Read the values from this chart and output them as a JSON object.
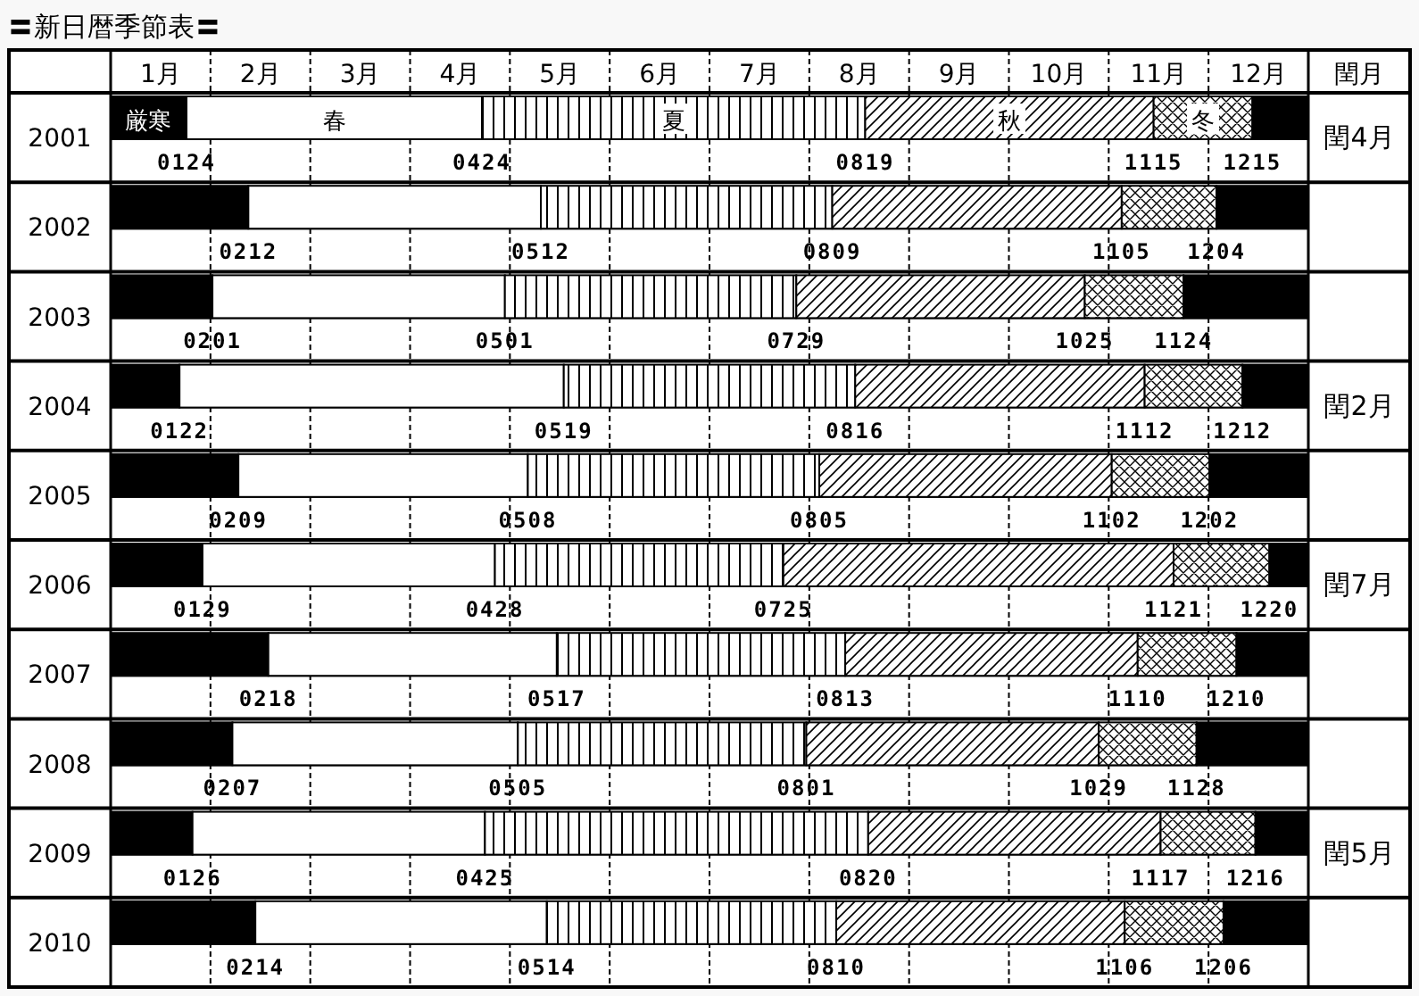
{
  "chart_data": {
    "type": "bar",
    "orientation": "horizontal",
    "title": "〓新日暦季節表〓",
    "y2label": "閏月",
    "grid": true,
    "categories": [
      "2001",
      "2002",
      "2003",
      "2004",
      "2005",
      "2006",
      "2007",
      "2008",
      "2009",
      "2010"
    ],
    "xlim": [
      0.5,
      12.5
    ],
    "xticks": [
      {
        "value": 1,
        "label": "1月"
      },
      {
        "value": 1.5,
        "label": null
      },
      {
        "value": 2,
        "label": "2月"
      },
      {
        "value": 2.5,
        "label": null
      },
      {
        "value": 3,
        "label": "3月"
      },
      {
        "value": 3.5,
        "label": null
      },
      {
        "value": 4,
        "label": "4月"
      },
      {
        "value": 4.5,
        "label": null
      },
      {
        "value": 5,
        "label": "5月"
      },
      {
        "value": 5.5,
        "label": null
      },
      {
        "value": 6,
        "label": "6月"
      },
      {
        "value": 6.5,
        "label": null
      },
      {
        "value": 7,
        "label": "7月"
      },
      {
        "value": 7.5,
        "label": null
      },
      {
        "value": 8,
        "label": "8月"
      },
      {
        "value": 8.5,
        "label": null
      },
      {
        "value": 9,
        "label": "9月"
      },
      {
        "value": 9.5,
        "label": null
      },
      {
        "value": 10,
        "label": "10月"
      },
      {
        "value": 10.5,
        "label": null
      },
      {
        "value": 11,
        "label": "11月"
      },
      {
        "value": 11.5,
        "label": null
      },
      {
        "value": 12,
        "label": "12月"
      }
    ],
    "series": [
      {
        "name": "厳寒",
        "color": "#000000",
        "base": [
          0.5,
          0.5,
          0.5,
          0.5,
          0.5,
          0.5,
          0.5,
          0.5,
          0.5,
          0.5
        ],
        "values": [
          0.76,
          1.38,
          1.02,
          0.69,
          1.28,
          0.92,
          1.58,
          1.22,
          0.82,
          1.45
        ]
      },
      {
        "name": "春",
        "color": "#ffffff",
        "base": [
          1.26,
          1.88,
          1.52,
          1.19,
          1.78,
          1.42,
          2.08,
          1.72,
          1.32,
          1.95
        ],
        "values": [
          2.96,
          2.93,
          2.93,
          3.85,
          2.9,
          2.93,
          2.89,
          2.86,
          2.93,
          2.92
        ]
      },
      {
        "name": "夏",
        "color": "#000000",
        "base": [
          4.22,
          4.81,
          4.45,
          5.04,
          4.68,
          4.35,
          4.97,
          4.58,
          4.25,
          4.87
        ],
        "values": [
          3.84,
          2.92,
          2.92,
          2.92,
          2.92,
          2.89,
          2.89,
          2.89,
          3.84,
          2.9
        ]
      },
      {
        "name": "秋",
        "color": "#000000",
        "base": [
          8.06,
          7.73,
          7.37,
          7.96,
          7.6,
          7.24,
          7.86,
          7.47,
          8.09,
          7.77
        ],
        "values": [
          2.89,
          2.9,
          2.89,
          2.9,
          2.93,
          3.91,
          2.93,
          2.93,
          2.93,
          2.89
        ]
      },
      {
        "name": "冬",
        "color": "#000000",
        "base": [
          10.95,
          10.63,
          10.26,
          10.86,
          10.53,
          11.15,
          10.79,
          10.4,
          11.02,
          10.66
        ],
        "values": [
          0.99,
          0.95,
          0.99,
          0.98,
          0.98,
          0.96,
          0.99,
          0.98,
          0.95,
          0.99
        ]
      },
      {
        "color": "#000000",
        "base": [
          11.94,
          11.58,
          11.25,
          11.84,
          11.51,
          12.11,
          11.78,
          11.38,
          11.97,
          11.65
        ],
        "values": [
          0.56,
          0.92,
          1.25,
          0.66,
          0.99,
          0.39,
          0.72,
          1.12,
          0.53,
          0.85
        ]
      }
    ],
    "annotations": [
      {
        "text": "0124",
        "x": 1.26,
        "y": "2001"
      },
      {
        "text": "0424",
        "x": 4.22,
        "y": "2001"
      },
      {
        "text": "0819",
        "x": 8.06,
        "y": "2001"
      },
      {
        "text": "1115",
        "x": 10.95,
        "y": "2001"
      },
      {
        "text": "1215",
        "x": 11.94,
        "y": "2001"
      },
      {
        "text": "0212",
        "x": 1.88,
        "y": "2002"
      },
      {
        "text": "0512",
        "x": 4.81,
        "y": "2002"
      },
      {
        "text": "0809",
        "x": 7.73,
        "y": "2002"
      },
      {
        "text": "1105",
        "x": 10.63,
        "y": "2002"
      },
      {
        "text": "1204",
        "x": 11.58,
        "y": "2002"
      },
      {
        "text": "0201",
        "x": 1.52,
        "y": "2003"
      },
      {
        "text": "0501",
        "x": 4.45,
        "y": "2003"
      },
      {
        "text": "0729",
        "x": 7.37,
        "y": "2003"
      },
      {
        "text": "1025",
        "x": 10.26,
        "y": "2003"
      },
      {
        "text": "1124",
        "x": 11.25,
        "y": "2003"
      },
      {
        "text": "0122",
        "x": 1.19,
        "y": "2004"
      },
      {
        "text": "0519",
        "x": 5.04,
        "y": "2004"
      },
      {
        "text": "0816",
        "x": 7.96,
        "y": "2004"
      },
      {
        "text": "1112",
        "x": 10.86,
        "y": "2004"
      },
      {
        "text": "1212",
        "x": 11.84,
        "y": "2004"
      },
      {
        "text": "0209",
        "x": 1.78,
        "y": "2005"
      },
      {
        "text": "0508",
        "x": 4.68,
        "y": "2005"
      },
      {
        "text": "0805",
        "x": 7.6,
        "y": "2005"
      },
      {
        "text": "1102",
        "x": 10.53,
        "y": "2005"
      },
      {
        "text": "1202",
        "x": 11.51,
        "y": "2005"
      },
      {
        "text": "0129",
        "x": 1.42,
        "y": "2006"
      },
      {
        "text": "0428",
        "x": 4.35,
        "y": "2006"
      },
      {
        "text": "0725",
        "x": 7.24,
        "y": "2006"
      },
      {
        "text": "1121",
        "x": 11.15,
        "y": "2006"
      },
      {
        "text": "1220",
        "x": 12.11,
        "y": "2006"
      },
      {
        "text": "0218",
        "x": 2.08,
        "y": "2007"
      },
      {
        "text": "0517",
        "x": 4.97,
        "y": "2007"
      },
      {
        "text": "0813",
        "x": 7.86,
        "y": "2007"
      },
      {
        "text": "1110",
        "x": 10.79,
        "y": "2007"
      },
      {
        "text": "1210",
        "x": 11.78,
        "y": "2007"
      },
      {
        "text": "0207",
        "x": 1.72,
        "y": "2008"
      },
      {
        "text": "0505",
        "x": 4.58,
        "y": "2008"
      },
      {
        "text": "0801",
        "x": 7.47,
        "y": "2008"
      },
      {
        "text": "1029",
        "x": 10.4,
        "y": "2008"
      },
      {
        "text": "1128",
        "x": 11.38,
        "y": "2008"
      },
      {
        "text": "0126",
        "x": 1.32,
        "y": "2009"
      },
      {
        "text": "0425",
        "x": 4.25,
        "y": "2009"
      },
      {
        "text": "0820",
        "x": 8.09,
        "y": "2009"
      },
      {
        "text": "1117",
        "x": 11.02,
        "y": "2009"
      },
      {
        "text": "1216",
        "x": 11.97,
        "y": "2009"
      },
      {
        "text": "0214",
        "x": 1.95,
        "y": "2010"
      },
      {
        "text": "0514",
        "x": 4.87,
        "y": "2010"
      },
      {
        "text": "0810",
        "x": 7.77,
        "y": "2010"
      },
      {
        "text": "1106",
        "x": 10.66,
        "y": "2010"
      },
      {
        "text": "1206",
        "x": 11.65,
        "y": "2010"
      },
      {
        "text": "閏4月",
        "x": 12.5,
        "y": "2001"
      },
      {
        "text": "閏2月",
        "x": 12.5,
        "y": "2004"
      },
      {
        "text": "閏7月",
        "x": 12.5,
        "y": "2006"
      },
      {
        "text": "閏5月",
        "x": 12.5,
        "y": "2009"
      }
    ]
  }
}
